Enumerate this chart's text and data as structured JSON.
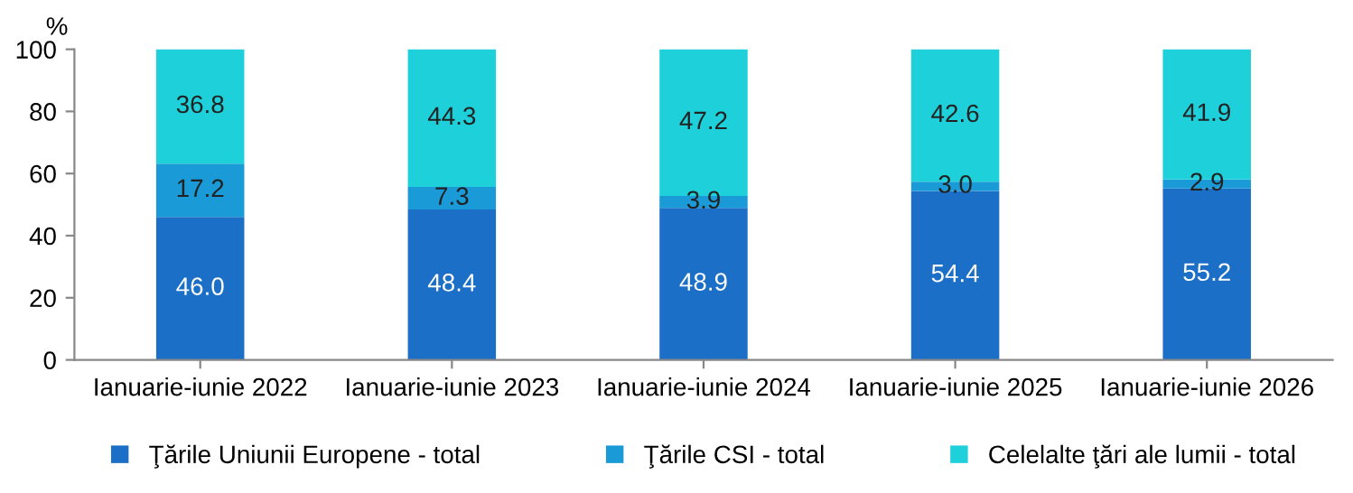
{
  "chart_data": {
    "type": "bar",
    "stacked": true,
    "ylabel": "%",
    "categories": [
      "Ianuarie-iunie 2022",
      "Ianuarie-iunie 2023",
      "Ianuarie-iunie 2024",
      "Ianuarie-iunie 2025",
      "Ianuarie-iunie 2026"
    ],
    "series": [
      {
        "name": "Ţările Uniunii Europene - total",
        "color": "#1c6fc6",
        "values": [
          46.0,
          48.4,
          48.9,
          54.4,
          55.2
        ],
        "value_labels": [
          "46.0",
          "48.4",
          "48.9",
          "54.4",
          "55.2"
        ]
      },
      {
        "name": "Ţările CSI - total",
        "color": "#1a9ad6",
        "values": [
          17.2,
          7.3,
          3.9,
          3.0,
          2.9
        ],
        "value_labels": [
          "17.2",
          "7.3",
          "3.9",
          "3.0",
          "2.9"
        ]
      },
      {
        "name": "Celelalte ţări ale lumii - total",
        "color": "#1ed0da",
        "values": [
          36.8,
          44.3,
          47.2,
          42.6,
          41.9
        ],
        "value_labels": [
          "36.8",
          "44.3",
          "47.2",
          "42.6",
          "41.9"
        ]
      }
    ],
    "ylim": [
      0,
      100
    ],
    "yticks": [
      0,
      20,
      40,
      60,
      80,
      100
    ],
    "grid": false,
    "legend": "bottom"
  }
}
